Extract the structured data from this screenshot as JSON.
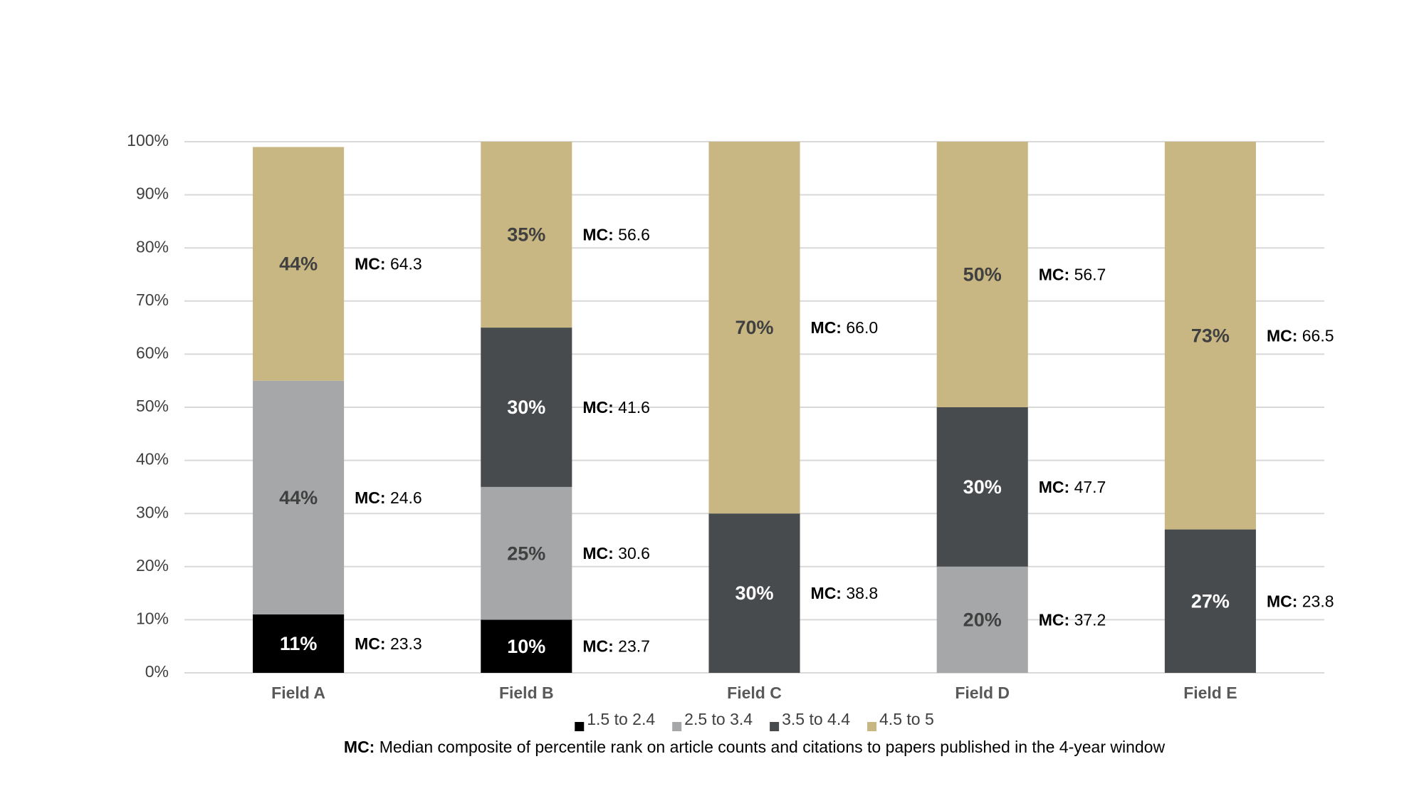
{
  "chart_data": {
    "type": "stacked_bar",
    "categories": [
      "Field A",
      "Field B",
      "Field C",
      "Field D",
      "Field E"
    ],
    "series": [
      {
        "name": "1.5 to 2.4",
        "color": "#000000",
        "values": [
          11,
          10,
          null,
          null,
          null
        ],
        "value_labels": [
          "11%",
          "10%",
          null,
          null,
          null
        ],
        "mc_labels": [
          "23.3",
          "23.7",
          null,
          null,
          null
        ]
      },
      {
        "name": "2.5 to 3.4",
        "color": "#a5a7a8",
        "values": [
          44,
          25,
          null,
          20,
          null
        ],
        "value_labels": [
          "44%",
          "25%",
          null,
          "20%",
          null
        ],
        "mc_labels": [
          "24.6",
          "30.6",
          null,
          "37.2",
          null
        ]
      },
      {
        "name": "3.5 to 4.4",
        "color": "#484b4d",
        "values": [
          null,
          30,
          30,
          30,
          27
        ],
        "value_labels": [
          null,
          "30%",
          "30%",
          "30%",
          "27%"
        ],
        "mc_labels": [
          null,
          "41.6",
          "38.8",
          "47.7",
          "23.8"
        ]
      },
      {
        "name": "4.5 to 5",
        "color": "#c8b783",
        "values": [
          44,
          35,
          70,
          50,
          73
        ],
        "value_labels": [
          "44%",
          "35%",
          "70%",
          "50%",
          "73%"
        ],
        "mc_labels": [
          "64.3",
          "56.6",
          "66.0",
          "56.7",
          "66.5"
        ]
      }
    ],
    "mc_prefix": "MC:",
    "ylim": [
      0,
      100
    ],
    "yticks": [
      {
        "value": 0,
        "label": "0%"
      },
      {
        "value": 10,
        "label": "10%"
      },
      {
        "value": 20,
        "label": "20%"
      },
      {
        "value": 30,
        "label": "30%"
      },
      {
        "value": 40,
        "label": "40%"
      },
      {
        "value": 50,
        "label": "50%"
      },
      {
        "value": 60,
        "label": "60%"
      },
      {
        "value": 70,
        "label": "70%"
      },
      {
        "value": 80,
        "label": "80%"
      },
      {
        "value": 90,
        "label": "90%"
      },
      {
        "value": 100,
        "label": "100%"
      }
    ],
    "grid": true,
    "legend": "bottom",
    "footnote": "Median composite of percentile rank on article counts and citations to papers published in the 4-year window"
  }
}
